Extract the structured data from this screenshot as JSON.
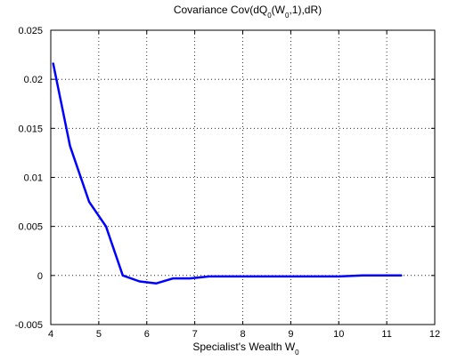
{
  "chart_data": {
    "type": "line",
    "title": "Covariance Cov(dQ0(W0,1),dR)",
    "title_parts": {
      "prefix": "Covariance Cov(dQ",
      "sub1": "0",
      "mid1": "(W",
      "sub2": "0",
      "suffix": ",1),dR)"
    },
    "xlabel": "Specialist's Wealth W0",
    "xlabel_parts": {
      "text": "Specialist's Wealth W",
      "sub": "0"
    },
    "ylabel": "",
    "xlim": [
      4,
      12
    ],
    "ylim": [
      -0.005,
      0.025
    ],
    "xticks": [
      4,
      5,
      6,
      7,
      8,
      9,
      10,
      11,
      12
    ],
    "xtick_labels": [
      "4",
      "5",
      "6",
      "7",
      "8",
      "9",
      "10",
      "11",
      "12"
    ],
    "yticks": [
      -0.005,
      0,
      0.005,
      0.01,
      0.015,
      0.02,
      0.025
    ],
    "ytick_labels": [
      "-0.005",
      "0",
      "0.005",
      "0.01",
      "0.015",
      "0.02",
      "0.025"
    ],
    "grid": true,
    "line_color": "#0000ff",
    "series": [
      {
        "x": [
          4.05,
          4.4,
          4.8,
          5.15,
          5.5,
          5.85,
          6.2,
          6.55,
          6.9,
          7.3,
          8.0,
          8.5,
          9.0,
          9.5,
          10.0,
          10.5,
          11.0,
          11.3
        ],
        "values": [
          0.0216,
          0.0132,
          0.0075,
          0.005,
          0.0,
          -0.0006,
          -0.0008,
          -0.0003,
          -0.0003,
          -0.0001,
          -0.0001,
          -0.0001,
          -0.0001,
          -0.0001,
          -0.0001,
          0.0,
          0.0,
          0.0
        ]
      }
    ]
  }
}
